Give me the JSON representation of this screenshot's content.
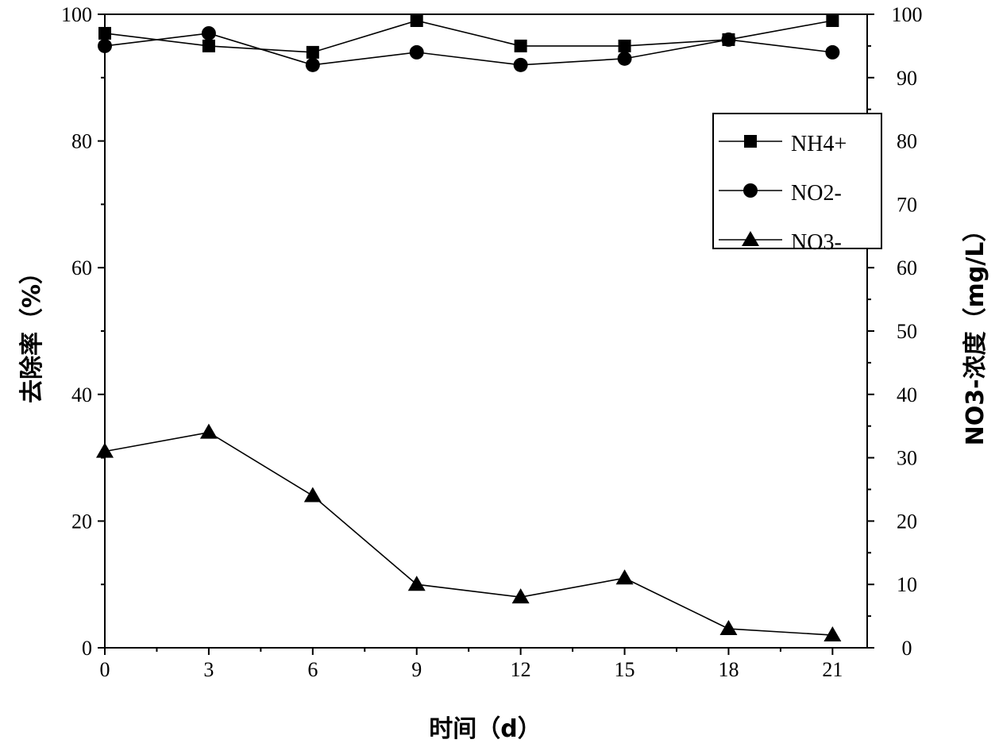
{
  "chart_data": {
    "type": "line",
    "title": "",
    "xlabel": "时间（d）",
    "ylabel": "去除率（%）",
    "y2label": "NO3-浓度（mg/L）",
    "xlim": [
      0,
      22
    ],
    "ylim": [
      0,
      100
    ],
    "y2lim": [
      0,
      100
    ],
    "xticks": [
      0,
      3,
      6,
      9,
      12,
      15,
      18,
      21
    ],
    "yticks": [
      0,
      20,
      40,
      60,
      80,
      100
    ],
    "y2ticks": [
      0,
      10,
      20,
      30,
      40,
      50,
      60,
      70,
      80,
      90,
      100
    ],
    "grid": false,
    "legend_position": "top-right",
    "x": [
      0,
      3,
      6,
      9,
      12,
      15,
      18,
      21
    ],
    "series": [
      {
        "name": "NH4+",
        "marker": "square",
        "axis": "left",
        "values": [
          97,
          95,
          94,
          99,
          95,
          95,
          96,
          99
        ]
      },
      {
        "name": "NO2-",
        "marker": "circle",
        "axis": "left",
        "values": [
          95,
          97,
          92,
          94,
          92,
          93,
          96,
          94
        ]
      },
      {
        "name": "NO3-",
        "marker": "triangle",
        "axis": "right",
        "values": [
          31,
          34,
          24,
          10,
          8,
          11,
          3,
          2
        ]
      }
    ],
    "colors": {
      "line": "#000000",
      "marker": "#000000"
    }
  }
}
